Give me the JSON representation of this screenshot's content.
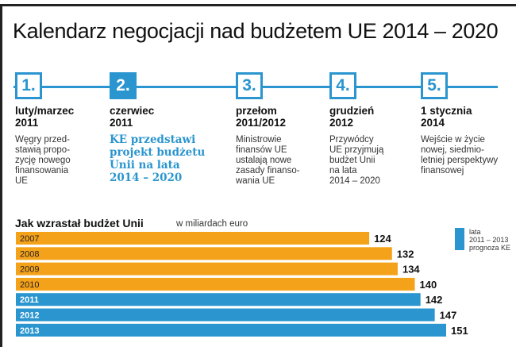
{
  "title": "Kalendarz negocjacji nad budżetem UE 2014 – 2020",
  "steps": [
    {
      "num": "1.",
      "date": "luty/marzec\n2011",
      "desc": "Węgry przed-\nstawią propo-\nzycję nowego\nfinansowania\nUE"
    },
    {
      "num": "2.",
      "date": "czerwiec\n2011",
      "desc": "KE przedstawi\nprojekt budżetu\nUnii na lata\n2014 – 2020"
    },
    {
      "num": "3.",
      "date": "przełom\n2011/2012",
      "desc": "Ministrowie\nfinansów UE\nustalają nowe\nzasady finanso-\nwania UE"
    },
    {
      "num": "4.",
      "date": "grudzień\n2012",
      "desc": "Przywódcy\nUE przyjmują\nbudżet Unii\nna lata\n2014 – 2020"
    },
    {
      "num": "5.",
      "date": "1 stycznia\n2014",
      "desc": "Wejście w życie\nnowej, siedmio-\nletniej perspektywy\nfinansowej"
    }
  ],
  "colors": {
    "accent": "#2a95cf",
    "orange": "#f5a21b",
    "text": "#111111"
  },
  "chart_data": {
    "type": "bar",
    "orientation": "horizontal",
    "title": "Jak wzrastał budżet Unii",
    "unit": "w miliardach euro",
    "categories": [
      "2007",
      "2008",
      "2009",
      "2010",
      "2011",
      "2012",
      "2013"
    ],
    "values": [
      124,
      132,
      134,
      140,
      142,
      147,
      151
    ],
    "highlight_categories": [
      "2011",
      "2012",
      "2013"
    ],
    "legend": "lata\n2011 – 2013\nprognoza KE",
    "xlim": [
      0,
      151
    ]
  }
}
